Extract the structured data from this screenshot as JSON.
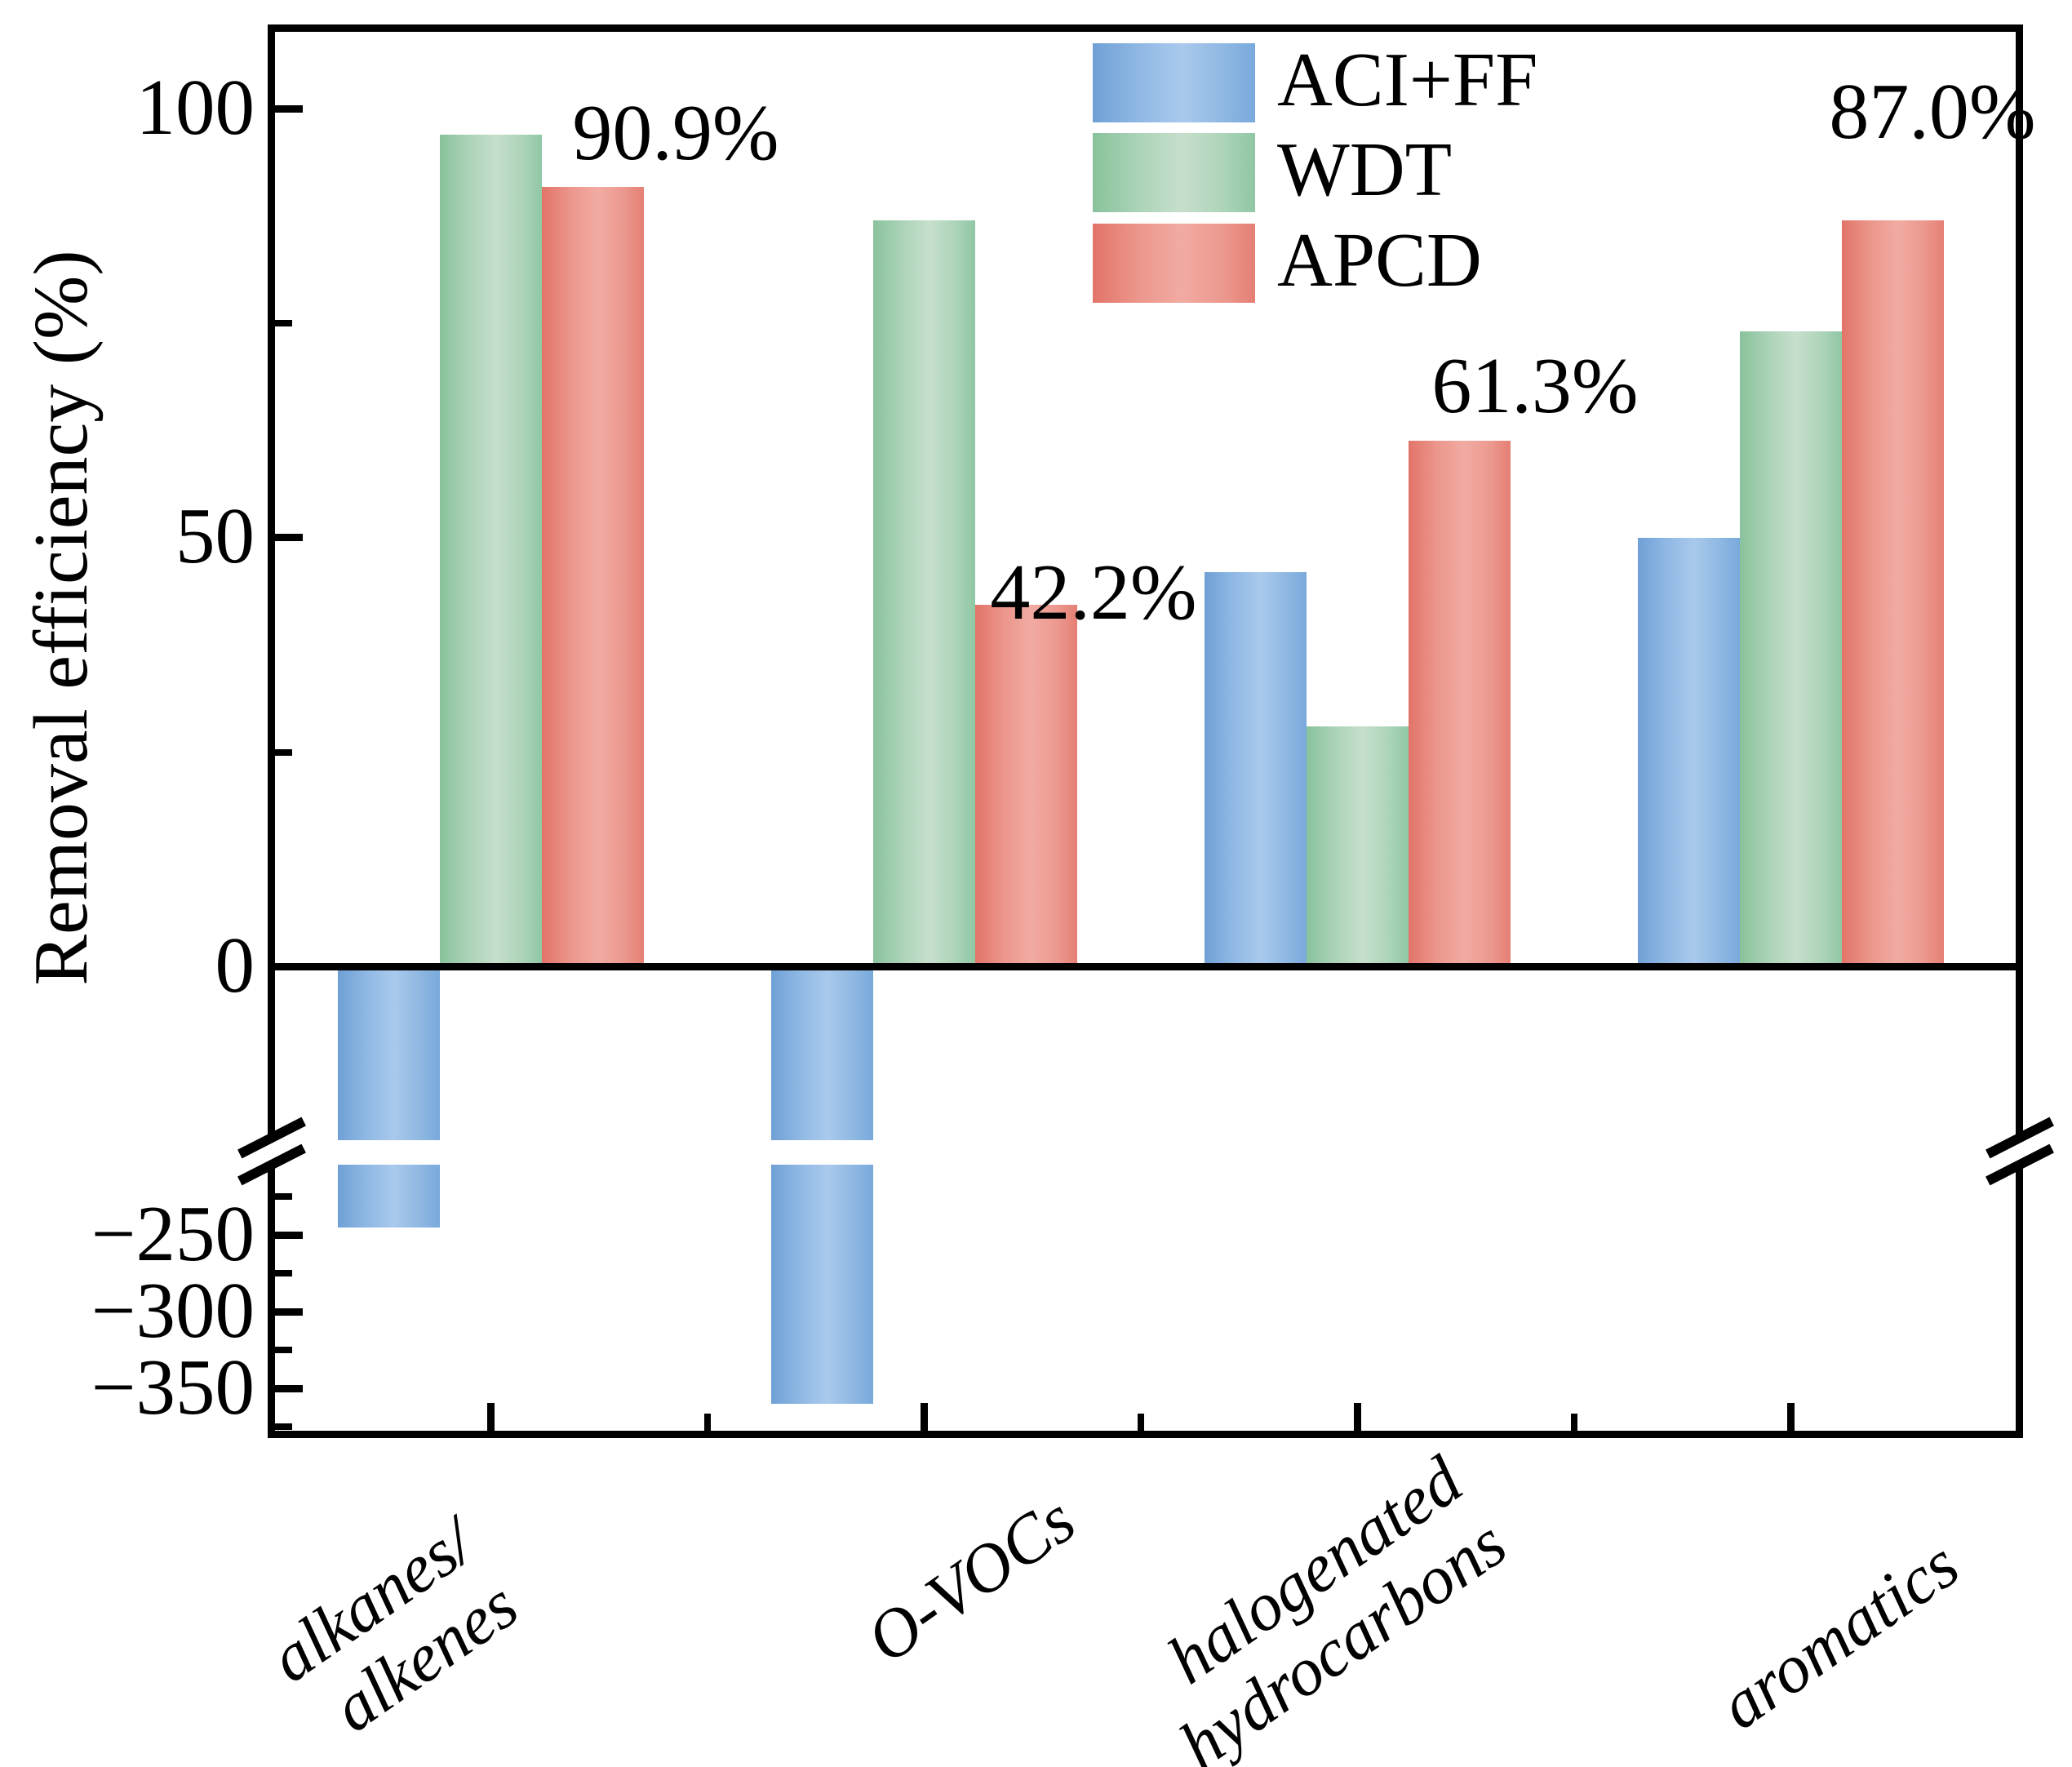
{
  "chart_data": {
    "type": "bar",
    "title": "",
    "ylabel": "Removal efficiency (%)",
    "xlabel": "",
    "grid": false,
    "axis_break": true,
    "categories": [
      {
        "lines": [
          "alkanes/",
          "alkenes"
        ]
      },
      {
        "lines": [
          "O-VOCs"
        ]
      },
      {
        "lines": [
          "halogenated",
          "hydrocarbons"
        ]
      },
      {
        "lines": [
          "aromatics"
        ]
      }
    ],
    "series": [
      {
        "name": "ACI+FF",
        "color": "#74A5DA",
        "values": [
          -245,
          -360,
          46,
          50
        ]
      },
      {
        "name": "WDT",
        "color": "#8BC4A1",
        "values": [
          97,
          87,
          28,
          74
        ]
      },
      {
        "name": "APCD",
        "color": "#E2796D",
        "values": [
          90.9,
          42.2,
          61.3,
          87.0
        ]
      }
    ],
    "value_labels": {
      "on_series": "APCD",
      "texts": [
        "90.9%",
        "42.2%",
        "61.3%",
        "87.0%"
      ]
    },
    "y_axis_top": {
      "tick_values": [
        100,
        50,
        0
      ],
      "tick_labels": [
        "100",
        "50",
        "0"
      ],
      "minor_tick_values": [
        75,
        25
      ],
      "range": [
        0,
        110
      ]
    },
    "y_axis_bottom": {
      "tick_values": [
        -250,
        -300,
        -350
      ],
      "tick_labels": [
        "−250",
        "−300",
        "−350"
      ],
      "minor_tick_values": [
        -225,
        -275,
        -325,
        -375
      ],
      "range": [
        -214,
        -380
      ]
    },
    "legend": {
      "entries": [
        "ACI+FF",
        "WDT",
        "APCD"
      ],
      "position": "upper center",
      "frame": false
    }
  }
}
